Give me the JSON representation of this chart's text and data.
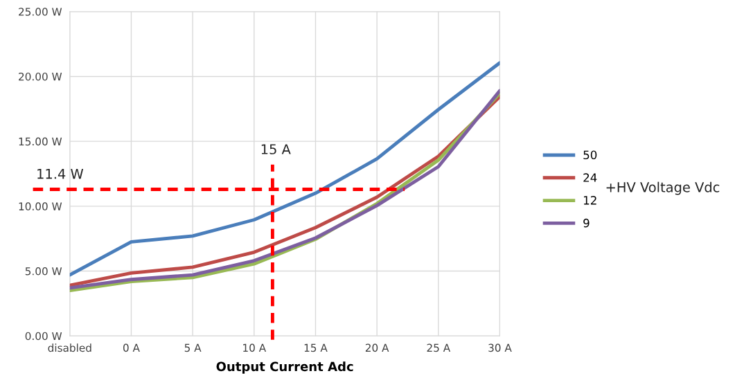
{
  "chart_data": {
    "type": "line",
    "xlabel": "Output Current Adc",
    "legend_title": "+HV Voltage Vdc",
    "categories": [
      "disabled",
      "0 A",
      "5 A",
      "10 A",
      "15 A",
      "20 A",
      "25 A",
      "30 A"
    ],
    "series": [
      {
        "name": "50",
        "color": "#4a7ebb",
        "values": [
          4.7,
          7.25,
          7.7,
          8.95,
          11.0,
          13.65,
          17.45,
          21.05
        ]
      },
      {
        "name": "24",
        "color": "#be4b48",
        "values": [
          3.9,
          4.85,
          5.3,
          6.45,
          8.35,
          10.7,
          13.85,
          18.45
        ]
      },
      {
        "name": "12",
        "color": "#98b954",
        "values": [
          3.5,
          4.2,
          4.5,
          5.55,
          7.45,
          10.2,
          13.55,
          18.7
        ]
      },
      {
        "name": "9",
        "color": "#7d5fa0",
        "values": [
          3.7,
          4.35,
          4.7,
          5.8,
          7.55,
          10.05,
          13.05,
          18.9
        ]
      }
    ],
    "ylim": [
      0,
      25
    ],
    "yticks": [
      {
        "value": 0,
        "label": "0.00 W"
      },
      {
        "value": 5,
        "label": "5.00 W"
      },
      {
        "value": 10,
        "label": "10.00 W"
      },
      {
        "value": 15,
        "label": "15.00 W"
      },
      {
        "value": 20,
        "label": "20.00 W"
      },
      {
        "value": 25,
        "label": "25.00 W"
      }
    ],
    "ref_lines": [
      {
        "axis": "y",
        "value": 11.3,
        "label": "11.4 W",
        "color": "#ff0000",
        "line_style": "dashed"
      }
    ],
    "annotations": [
      "15 A"
    ],
    "grid": true,
    "legend": "right",
    "marker": "none",
    "line_style": "solid"
  }
}
